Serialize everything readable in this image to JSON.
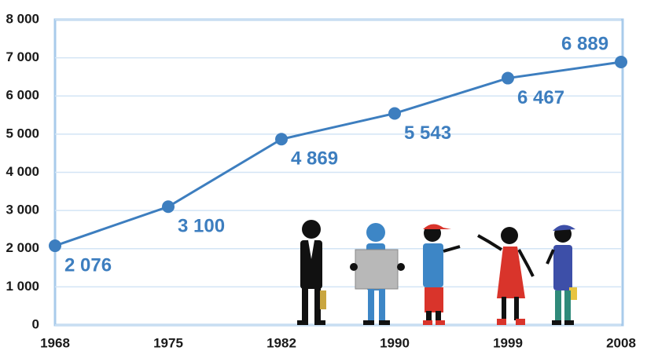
{
  "chart_data": {
    "type": "line",
    "categories": [
      "1968",
      "1975",
      "1982",
      "1990",
      "1999",
      "2008"
    ],
    "series": [
      {
        "color": "#3d7ebf",
        "values": [
          2076,
          3100,
          4869,
          5543,
          6467,
          6889
        ],
        "value_labels": [
          "2 076",
          "3 100",
          "4 869",
          "5 543",
          "6 467",
          "6 889"
        ]
      }
    ],
    "ylim": [
      0,
      8000
    ],
    "yticks": [
      0,
      {
        "value": 1000,
        "label": "1 000"
      },
      {
        "value": 2000,
        "label": "2 000"
      },
      {
        "value": 3000,
        "label": "3 000"
      },
      {
        "value": 4000,
        "label": "4 000"
      },
      {
        "value": 5000,
        "label": "5 000"
      },
      {
        "value": 6000,
        "label": "6 000"
      },
      {
        "value": 7000,
        "label": "7 000"
      },
      {
        "value": 8000,
        "label": "8 000"
      }
    ],
    "grid": true
  }
}
